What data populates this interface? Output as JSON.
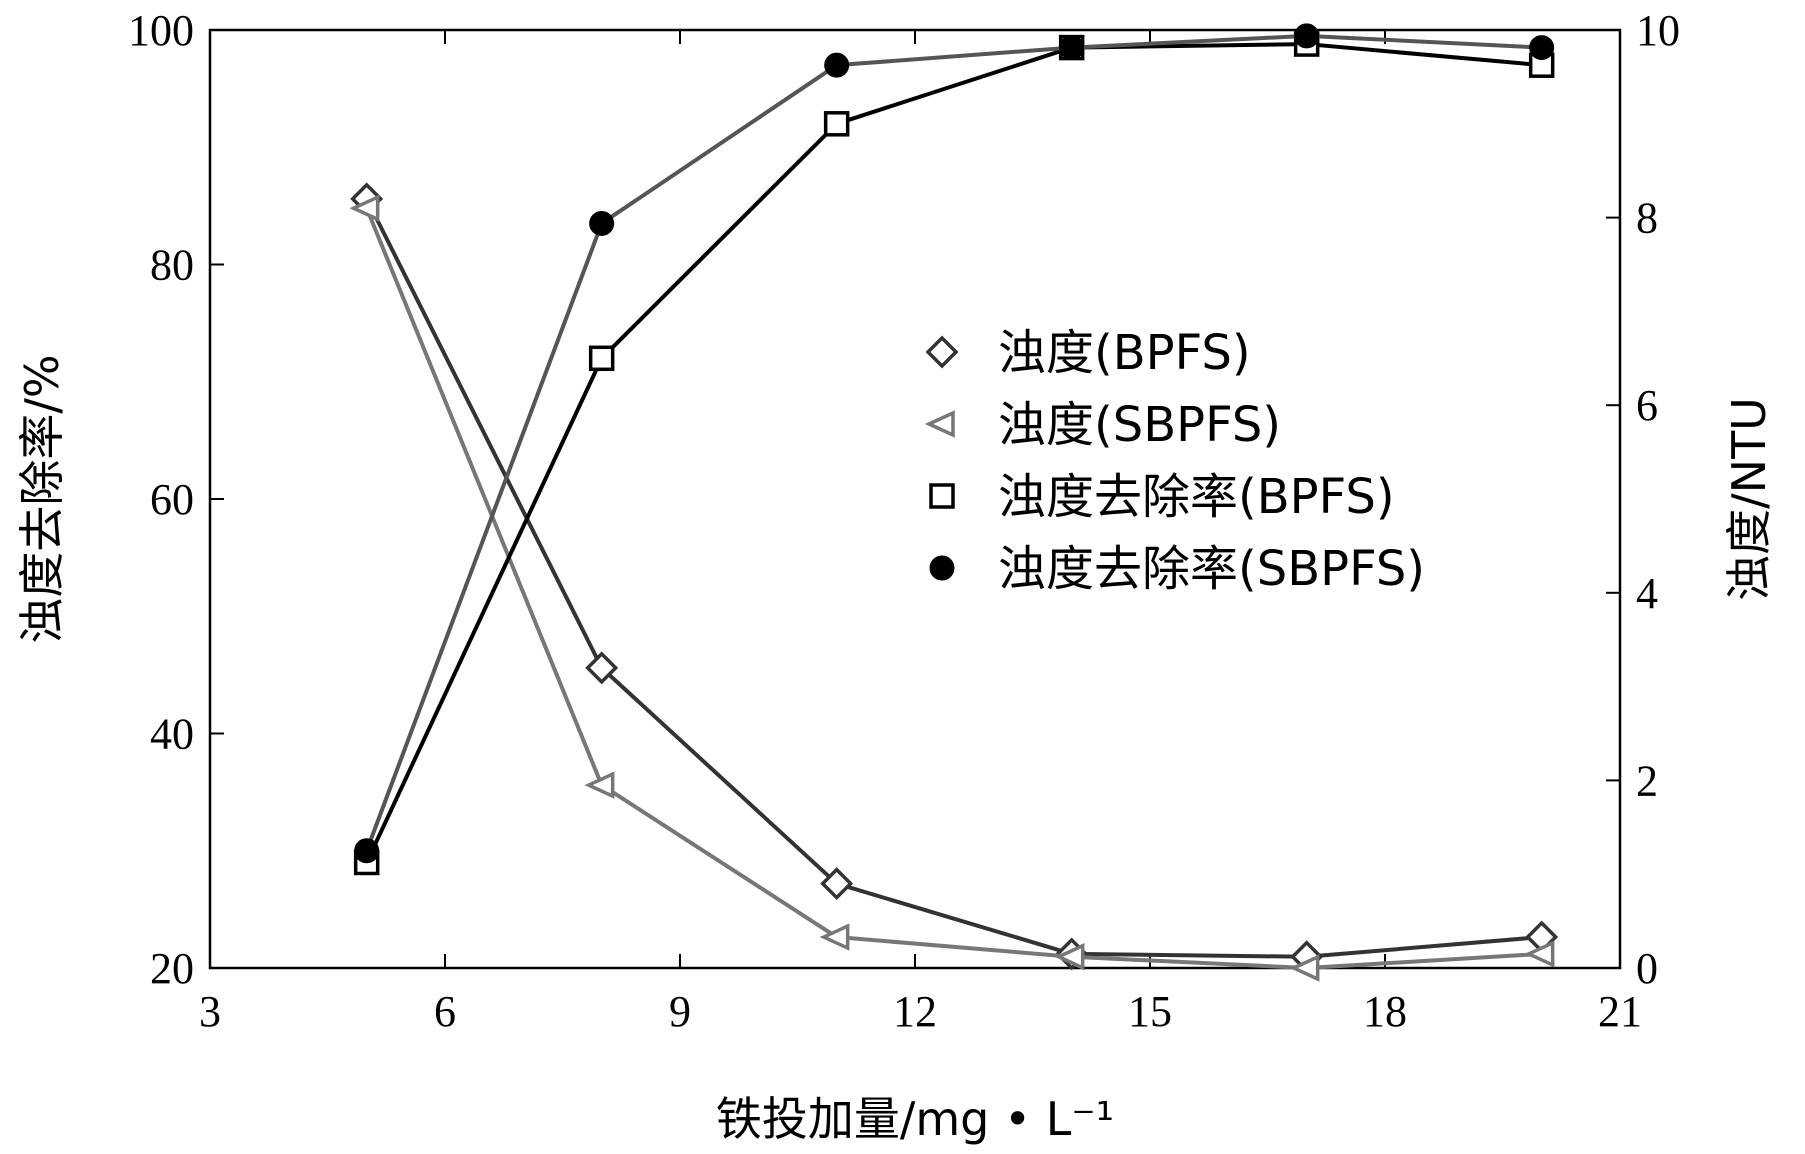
{
  "chart_data": {
    "type": "line",
    "xlabel": "铁投加量/mg • L⁻¹",
    "ylabel_left": "浊度去除率/%",
    "ylabel_right": "浊度/NTU",
    "xlim": [
      3,
      21
    ],
    "xticks": [
      3,
      6,
      9,
      12,
      15,
      18,
      21
    ],
    "ylim_left": [
      20,
      100
    ],
    "yticks_left": [
      20,
      40,
      60,
      80,
      100
    ],
    "ylim_right": [
      0,
      10
    ],
    "yticks_right": [
      0,
      2,
      4,
      6,
      8,
      10
    ],
    "legend_position": "center-right",
    "series": [
      {
        "name": "浊度(BPFS)",
        "axis": "right",
        "marker": "diamond-open",
        "color": "#333333",
        "x": [
          5,
          8,
          11,
          14,
          17,
          20
        ],
        "y": [
          8.2,
          3.2,
          0.9,
          0.15,
          0.12,
          0.33
        ]
      },
      {
        "name": "浊度(SBPFS)",
        "axis": "right",
        "marker": "triangle-left-open",
        "color": "#777777",
        "x": [
          5,
          8,
          11,
          14,
          17,
          20
        ],
        "y": [
          8.1,
          1.95,
          0.33,
          0.12,
          0.0,
          0.15
        ]
      },
      {
        "name": "浊度去除率(BPFS)",
        "axis": "left",
        "marker": "square-open",
        "color": "#000000",
        "x": [
          5,
          8,
          11,
          14,
          17,
          20
        ],
        "y": [
          29,
          72,
          92,
          98.5,
          98.8,
          97
        ]
      },
      {
        "name": "浊度去除率(SBPFS)",
        "axis": "left",
        "marker": "circle-filled",
        "color": "#555555",
        "x": [
          5,
          8,
          11,
          14,
          17,
          20
        ],
        "y": [
          30,
          83.5,
          97,
          98.5,
          99.5,
          98.5
        ]
      }
    ]
  }
}
